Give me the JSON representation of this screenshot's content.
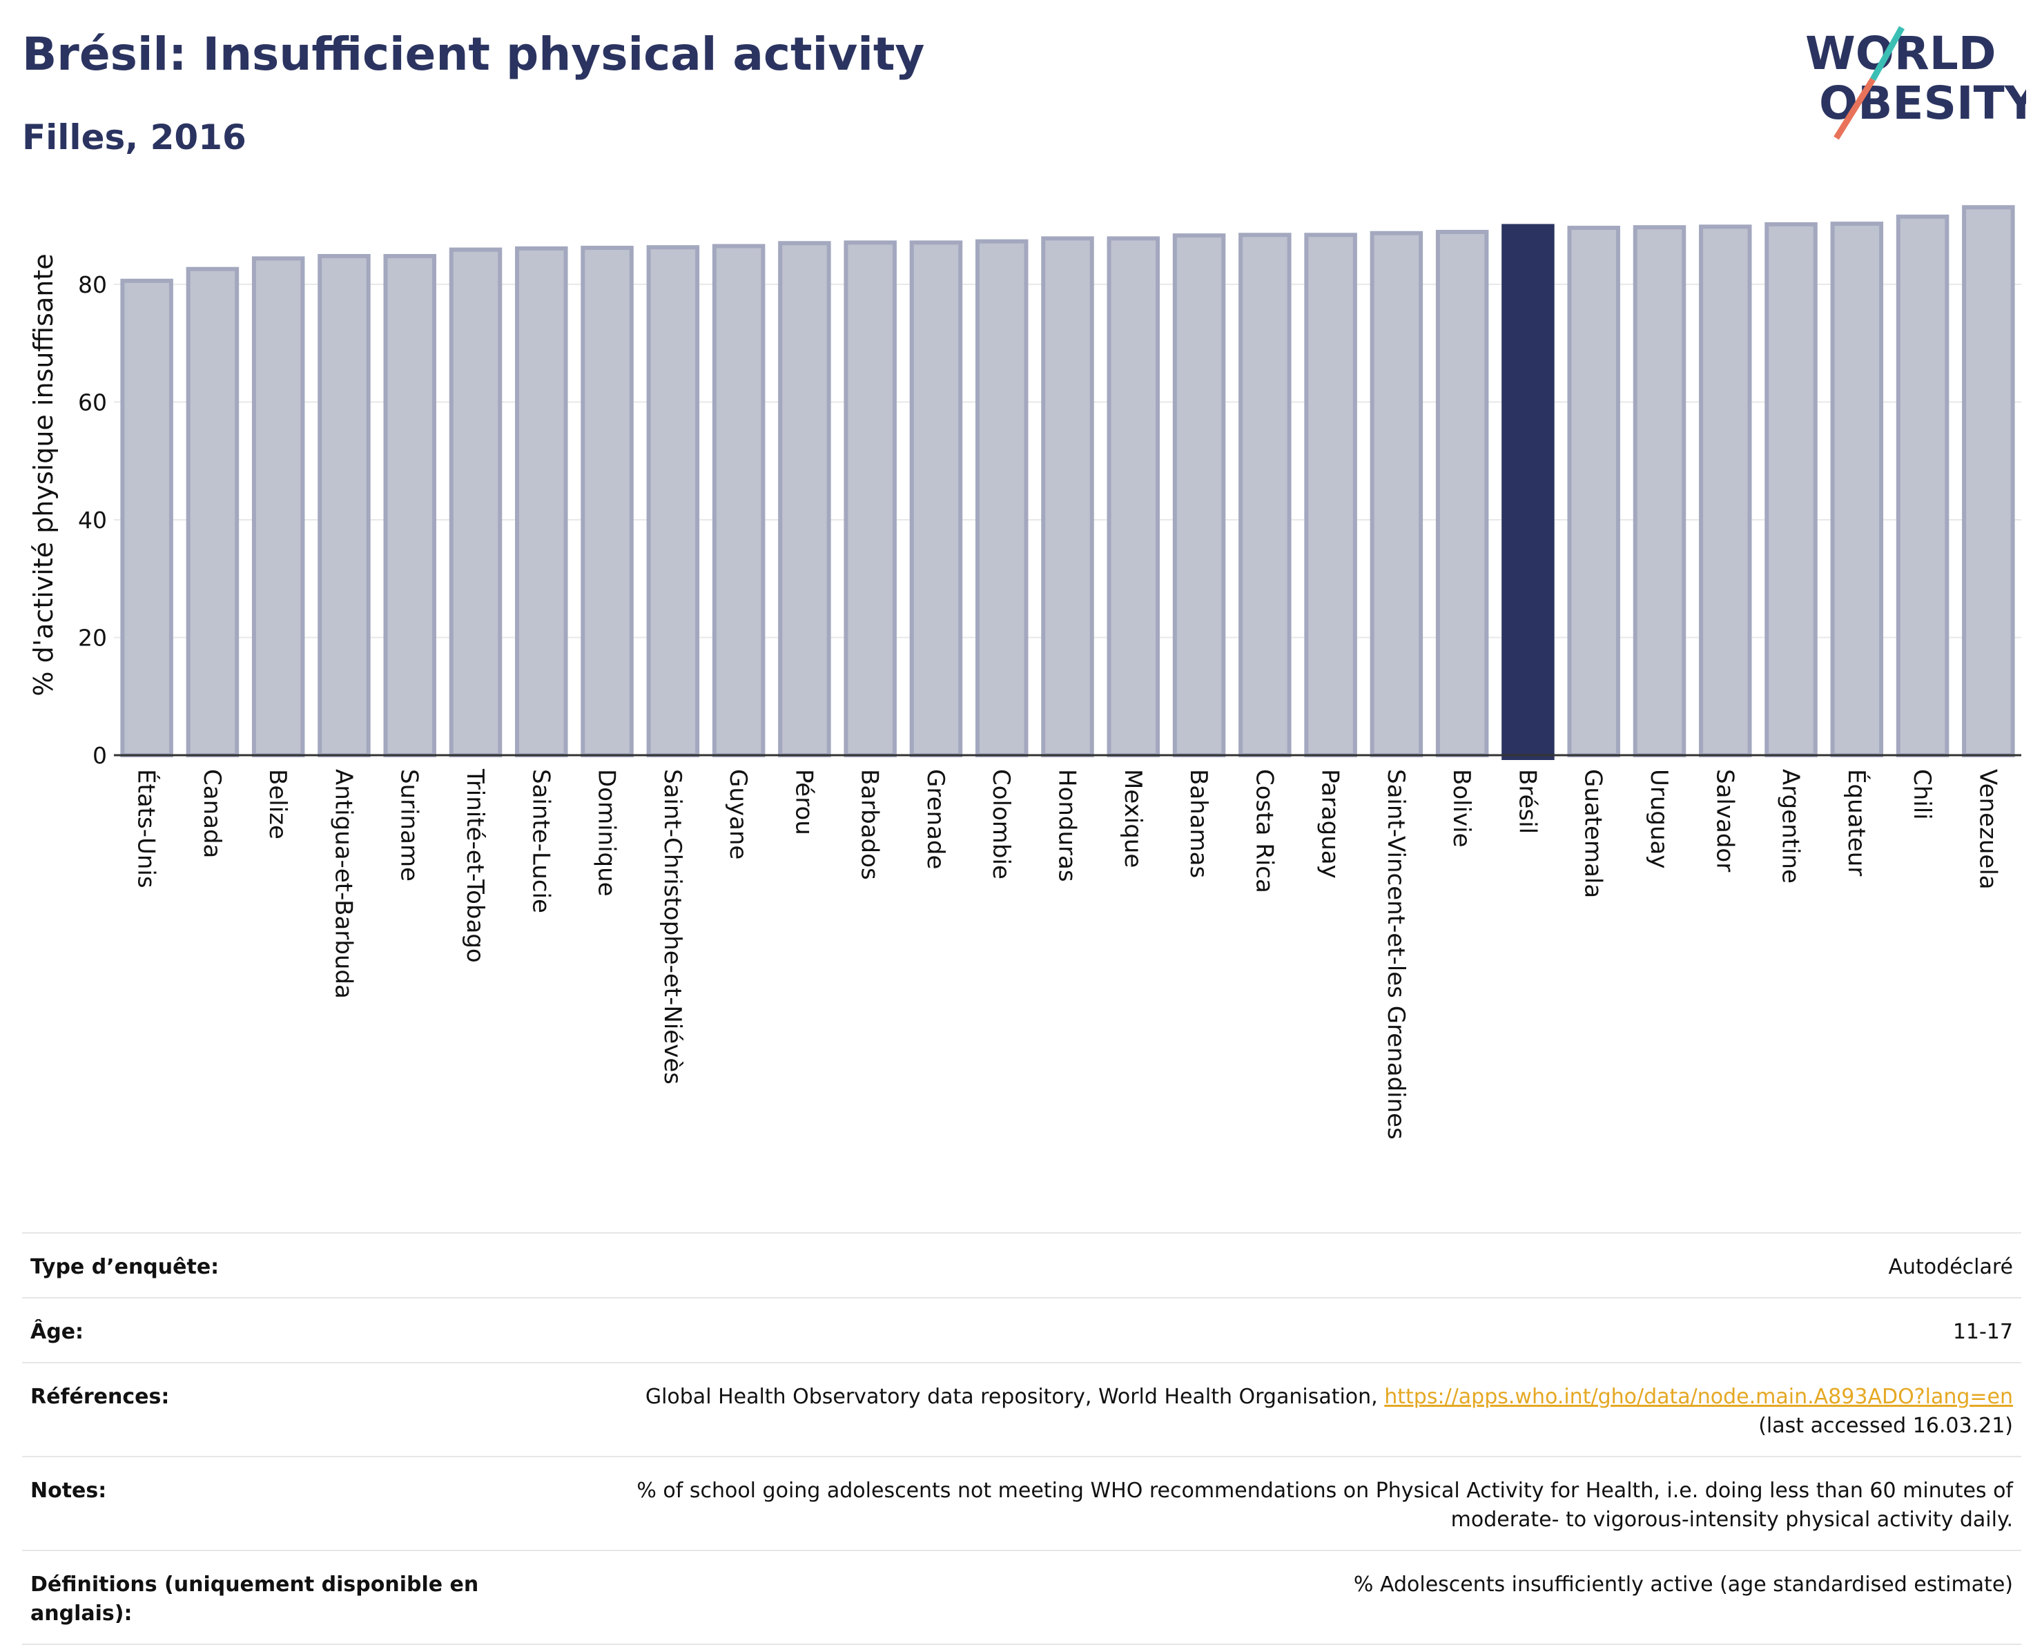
{
  "header": {
    "title": "Brésil: Insufficient physical activity",
    "subtitle": "Filles, 2016",
    "logo_line1": "WORLD",
    "logo_line2": "OBESITY"
  },
  "chart_data": {
    "type": "bar",
    "ylabel": "% d'activité physique insuffisante",
    "ylim": [
      0,
      95
    ],
    "yticks": [
      0,
      20,
      40,
      60,
      80
    ],
    "grid": true,
    "highlight": "Brésil",
    "colors": {
      "bar": "#bfc2cf",
      "bar_edge": "#a3a8bf",
      "highlight": "#2b3460"
    },
    "categories": [
      "États-Unis",
      "Canada",
      "Belize",
      "Antigua-et-Barbuda",
      "Suriname",
      "Trinité-et-Tobago",
      "Sainte-Lucie",
      "Dominique",
      "Saint-Christophe-et-Niévès",
      "Guyane",
      "Pérou",
      "Barbados",
      "Grenade",
      "Colombie",
      "Honduras",
      "Mexique",
      "Bahamas",
      "Costa Rica",
      "Paraguay",
      "Saint-Vincent-et-les Grenadines",
      "Bolivie",
      "Brésil",
      "Guatemala",
      "Uruguay",
      "Salvador",
      "Argentine",
      "Équateur",
      "Chili",
      "Venezuela"
    ],
    "values": [
      80.6,
      82.6,
      84.4,
      84.8,
      84.8,
      85.9,
      86.1,
      86.2,
      86.3,
      86.5,
      87.0,
      87.1,
      87.1,
      87.3,
      87.8,
      87.8,
      88.3,
      88.4,
      88.4,
      88.7,
      88.9,
      89.9,
      89.6,
      89.7,
      89.8,
      90.2,
      90.3,
      91.5,
      93.1
    ]
  },
  "info": {
    "rows": [
      {
        "key": "Type d’enquête:",
        "value": "Autodéclaré"
      },
      {
        "key": "Âge:",
        "value": "11-17"
      },
      {
        "key": "Références:",
        "value": "Global Health Observatory data repository, World Health Organisation,",
        "link": "https://apps.who.int/gho/data/node.main.A893ADO?lang=en",
        "value2": "(last accessed 16.03.21)"
      },
      {
        "key": "Notes:",
        "value": "% of school going adolescents not meeting WHO recommendations on Physical Activity for Health, i.e. doing less than 60 minutes of",
        "value2": "moderate- to vigorous-intensity physical activity daily."
      },
      {
        "key": "Définitions (uniquement disponible en anglais):",
        "value": "% Adolescents insufficiently active (age standardised estimate)"
      }
    ]
  }
}
